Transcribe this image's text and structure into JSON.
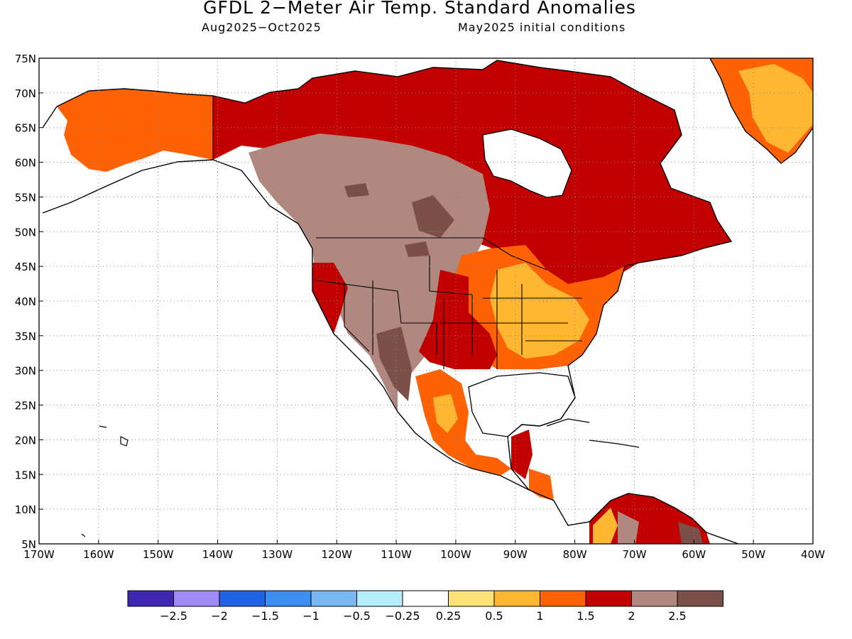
{
  "title": "GFDL 2−Meter Air Temp. Standard Anomalies",
  "subtitle_period": "Aug2025−Oct2025",
  "subtitle_init": "May2025 initial conditions",
  "map": {
    "lon_range": [
      -170,
      -40
    ],
    "lat_range": [
      5,
      75
    ],
    "lat_labels": [
      "75N",
      "70N",
      "65N",
      "60N",
      "55N",
      "50N",
      "45N",
      "40N",
      "35N",
      "30N",
      "25N",
      "20N",
      "15N",
      "10N",
      "5N"
    ],
    "lon_labels": [
      "170W",
      "160W",
      "150W",
      "140W",
      "130W",
      "120W",
      "110W",
      "100W",
      "90W",
      "80W",
      "70W",
      "60W",
      "50W",
      "40W"
    ],
    "ocean_color": "#ffffff",
    "coastline_color": "#000000"
  },
  "legend": {
    "colors": [
      "#3f27b4",
      "#a08af5",
      "#1f63e5",
      "#3c8ef2",
      "#78b9f4",
      "#b4eefb",
      "#ffffff",
      "#ffe377",
      "#ffb732",
      "#ff6205",
      "#c20000",
      "#b08880",
      "#7a5048"
    ],
    "labels": [
      "−2.5",
      "−2",
      "−1.5",
      "−1",
      "−0.5",
      "−0.25",
      "0.25",
      "0.5",
      "1",
      "1.5",
      "2",
      "2.5"
    ]
  }
}
